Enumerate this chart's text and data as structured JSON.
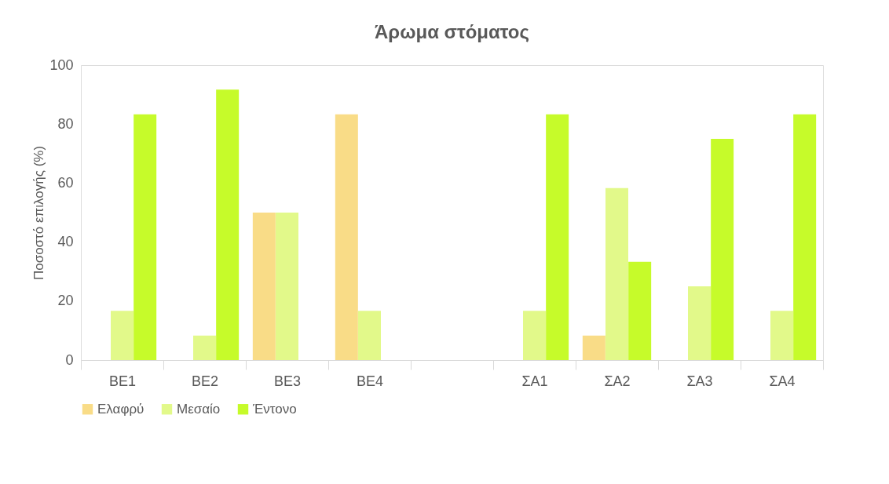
{
  "chart_data": {
    "type": "bar",
    "title": "Άρωμα στόματος",
    "ylabel": "Ποσοστό επιλογής (%)",
    "categories": [
      "ΒΕ1",
      "ΒΕ2",
      "ΒΕ3",
      "ΒΕ4",
      null,
      "ΣΑ1",
      "ΣΑ2",
      "ΣΑ3",
      "ΣΑ4"
    ],
    "series": [
      {
        "name": "Ελαφρύ",
        "color": "#f9dc87",
        "values": [
          null,
          null,
          50,
          83.3,
          null,
          null,
          8.3,
          null,
          null
        ]
      },
      {
        "name": "Μεσαίο",
        "color": "#e2f98a",
        "values": [
          16.7,
          8.3,
          50,
          16.7,
          null,
          16.7,
          58.3,
          25,
          16.7
        ]
      },
      {
        "name": "Έντονο",
        "color": "#c6fb2a",
        "values": [
          83.3,
          91.7,
          null,
          null,
          null,
          83.3,
          33.3,
          75,
          83.3
        ]
      }
    ],
    "ylim": [
      0,
      100
    ],
    "yticks": [
      0,
      20,
      40,
      60,
      80,
      100
    ],
    "grid": false,
    "legend": "bottom"
  }
}
